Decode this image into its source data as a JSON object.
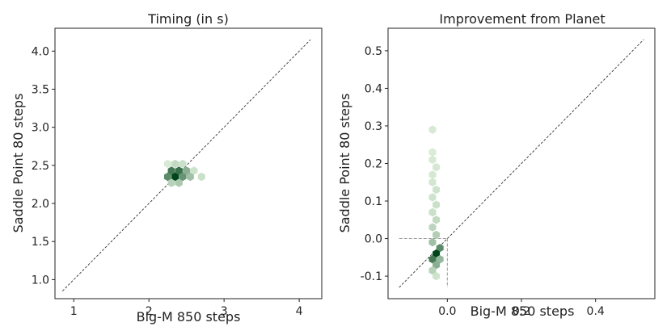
{
  "chart_data": [
    {
      "type": "hexbin-scatter",
      "title": "Timing (in s)",
      "xlabel": "Big-M 850 steps",
      "ylabel": "Saddle Point 80 steps",
      "xlim": [
        0.75,
        4.3
      ],
      "ylim": [
        0.75,
        4.3
      ],
      "xticks": [
        1,
        2,
        3,
        4
      ],
      "yticks": [
        1.0,
        1.5,
        2.0,
        2.5,
        3.0,
        3.5,
        4.0
      ],
      "ytick_labels": [
        "1.0",
        "1.5",
        "2.0",
        "2.5",
        "3.0",
        "3.5",
        "4.0"
      ],
      "diagonal": [
        [
          0.85,
          0.85
        ],
        [
          4.15,
          4.15
        ]
      ],
      "guides": null,
      "points": [
        {
          "x": 2.25,
          "y": 2.35,
          "density": 0.6
        },
        {
          "x": 2.3,
          "y": 2.43,
          "density": 0.7
        },
        {
          "x": 2.35,
          "y": 2.35,
          "density": 1.0
        },
        {
          "x": 2.4,
          "y": 2.43,
          "density": 0.75
        },
        {
          "x": 2.45,
          "y": 2.35,
          "density": 0.55
        },
        {
          "x": 2.5,
          "y": 2.43,
          "density": 0.4
        },
        {
          "x": 2.55,
          "y": 2.35,
          "density": 0.3
        },
        {
          "x": 2.7,
          "y": 2.35,
          "density": 0.12
        },
        {
          "x": 2.35,
          "y": 2.52,
          "density": 0.15
        },
        {
          "x": 2.45,
          "y": 2.52,
          "density": 0.12
        },
        {
          "x": 2.3,
          "y": 2.27,
          "density": 0.2
        },
        {
          "x": 2.4,
          "y": 2.27,
          "density": 0.25
        },
        {
          "x": 2.25,
          "y": 2.52,
          "density": 0.06
        },
        {
          "x": 2.6,
          "y": 2.43,
          "density": 0.1
        }
      ]
    },
    {
      "type": "hexbin-scatter",
      "title": "Improvement from Planet",
      "xlabel": "Big-M 850 steps",
      "ylabel": "Saddle Point 80 steps",
      "xlim": [
        -0.16,
        0.56
      ],
      "ylim": [
        -0.16,
        0.56
      ],
      "xticks": [
        0.0,
        0.2,
        0.4
      ],
      "xtick_labels": [
        "0.0",
        "0.2",
        "0.4"
      ],
      "yticks": [
        -0.1,
        0.0,
        0.1,
        0.2,
        0.3,
        0.4,
        0.5
      ],
      "ytick_labels": [
        "-0.1",
        "0.0",
        "0.1",
        "0.2",
        "0.3",
        "0.4",
        "0.5"
      ],
      "diagonal": [
        [
          -0.13,
          -0.13
        ],
        [
          0.53,
          0.53
        ]
      ],
      "guides": {
        "x": 0.0,
        "y": 0.0,
        "xmin": -0.13,
        "ymin": -0.13
      },
      "points": [
        {
          "x": -0.04,
          "y": 0.29,
          "density": 0.06
        },
        {
          "x": -0.04,
          "y": 0.23,
          "density": 0.05
        },
        {
          "x": -0.04,
          "y": 0.21,
          "density": 0.06
        },
        {
          "x": -0.03,
          "y": 0.19,
          "density": 0.07
        },
        {
          "x": -0.04,
          "y": 0.17,
          "density": 0.07
        },
        {
          "x": -0.04,
          "y": 0.15,
          "density": 0.08
        },
        {
          "x": -0.03,
          "y": 0.13,
          "density": 0.1
        },
        {
          "x": -0.04,
          "y": 0.11,
          "density": 0.1
        },
        {
          "x": -0.03,
          "y": 0.09,
          "density": 0.12
        },
        {
          "x": -0.04,
          "y": 0.07,
          "density": 0.12
        },
        {
          "x": -0.03,
          "y": 0.05,
          "density": 0.15
        },
        {
          "x": -0.04,
          "y": 0.03,
          "density": 0.18
        },
        {
          "x": -0.03,
          "y": 0.01,
          "density": 0.22
        },
        {
          "x": -0.04,
          "y": -0.01,
          "density": 0.3
        },
        {
          "x": -0.02,
          "y": -0.025,
          "density": 0.6
        },
        {
          "x": -0.03,
          "y": -0.04,
          "density": 1.0
        },
        {
          "x": -0.04,
          "y": -0.055,
          "density": 0.7
        },
        {
          "x": -0.02,
          "y": -0.055,
          "density": 0.35
        },
        {
          "x": -0.03,
          "y": -0.07,
          "density": 0.4
        },
        {
          "x": -0.04,
          "y": -0.085,
          "density": 0.2
        },
        {
          "x": -0.03,
          "y": -0.1,
          "density": 0.1
        }
      ]
    }
  ]
}
